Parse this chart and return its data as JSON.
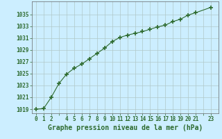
{
  "x": [
    0,
    1,
    2,
    3,
    4,
    5,
    6,
    7,
    8,
    9,
    10,
    11,
    12,
    13,
    14,
    15,
    16,
    17,
    18,
    19,
    20,
    21,
    23
  ],
  "y": [
    1019.0,
    1019.1,
    1021.0,
    1023.3,
    1024.9,
    1025.9,
    1026.6,
    1027.5,
    1028.4,
    1029.3,
    1030.4,
    1031.1,
    1031.5,
    1031.8,
    1032.1,
    1032.5,
    1032.9,
    1033.2,
    1033.8,
    1034.2,
    1034.9,
    1035.3,
    1036.2
  ],
  "line_color": "#2d6a2d",
  "marker": "+",
  "marker_size": 4,
  "marker_lw": 1.2,
  "bg_color": "#cceeff",
  "grid_color": "#b0c8c8",
  "xlabel": "Graphe pression niveau de la mer (hPa)",
  "xlabel_fontsize": 7,
  "ylabel_ticks": [
    1019,
    1021,
    1023,
    1025,
    1027,
    1029,
    1031,
    1033,
    1035
  ],
  "xlim": [
    -0.5,
    24.0
  ],
  "ylim": [
    1018.3,
    1037.2
  ],
  "xtick_labels": [
    "0",
    "1",
    "2",
    "",
    "4",
    "5",
    "6",
    "7",
    "8",
    "9",
    "10",
    "11",
    "12",
    "13",
    "14",
    "15",
    "16",
    "17",
    "18",
    "19",
    "20",
    "21",
    "",
    "23"
  ],
  "xtick_positions": [
    0,
    1,
    2,
    3,
    4,
    5,
    6,
    7,
    8,
    9,
    10,
    11,
    12,
    13,
    14,
    15,
    16,
    17,
    18,
    19,
    20,
    21,
    22,
    23
  ],
  "tick_fontsize": 5.5,
  "label_color": "#2d6a2d",
  "spine_color": "#666666"
}
